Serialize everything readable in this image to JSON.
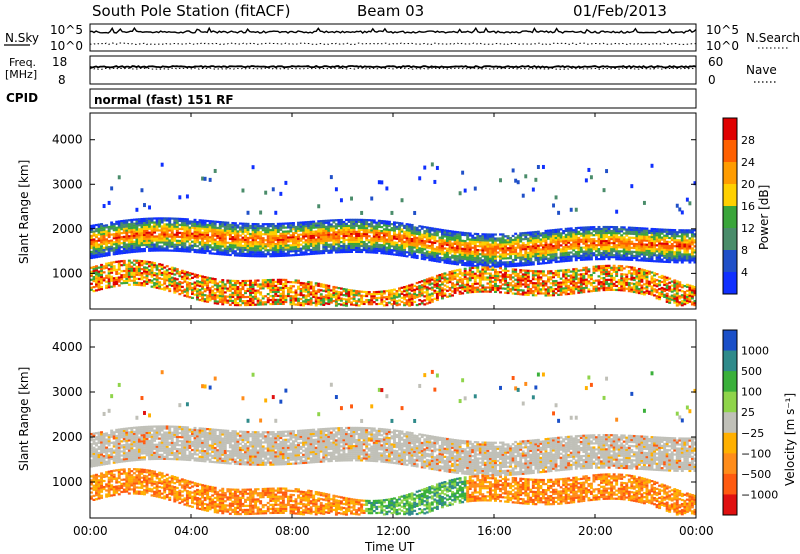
{
  "header": {
    "station": "South Pole Station (fitACF)",
    "beam": "Beam 03",
    "date": "01/Feb/2013"
  },
  "panels": {
    "nsky": {
      "label": "N.Sky",
      "ticks": [
        "10^5",
        "10^0"
      ]
    },
    "nsearch": {
      "label": "N.Search",
      "ticks": [
        "10^5",
        "10^0"
      ]
    },
    "freq": {
      "label_line1": "Freq.",
      "label_line2": "[MHz]",
      "ticks": [
        "18",
        "8"
      ]
    },
    "nave": {
      "label": "Nave",
      "ticks": [
        "60",
        "0"
      ]
    },
    "cpid": {
      "label": "CPID",
      "mode": "normal (fast) 151 RF"
    }
  },
  "chart_data": [
    {
      "type": "heatmap",
      "title": "",
      "xlabel": "Time UT",
      "ylabel": "Slant Range [km]",
      "x_ticks": [
        "00:00",
        "04:00",
        "08:00",
        "12:00",
        "16:00",
        "20:00",
        "00:00"
      ],
      "y_ticks": [
        1000,
        2000,
        3000,
        4000
      ],
      "ylim": [
        200,
        4600
      ],
      "colorbar": {
        "label": "Power [dB]",
        "ticks": [
          "28",
          "24",
          "20",
          "16",
          "12",
          "8",
          "4"
        ],
        "colors": [
          "#e00000",
          "#ff6000",
          "#ff9c00",
          "#ffd000",
          "#3aa53a",
          "#4a8c6a",
          "#2050c8",
          "#1030ff"
        ]
      },
      "bands": [
        {
          "name": "",
          "ranges": [
            [
              1500,
              2100
            ]
          ],
          "value": "mixed"
        }
      ]
    },
    {
      "type": "heatmap",
      "title": "",
      "xlabel": "Time UT",
      "ylabel": "Slant Range [km]",
      "x_ticks": [
        "00:00",
        "04:00",
        "08:00",
        "12:00",
        "16:00",
        "20:00",
        "00:00"
      ],
      "y_ticks": [
        1000,
        2000,
        3000,
        4000
      ],
      "ylim": [
        200,
        4600
      ],
      "colorbar": {
        "label": "Velocity [m s⁻¹]",
        "ticks": [
          "1000",
          "500",
          "100",
          "25",
          "−25",
          "−100",
          "−500",
          "−1000"
        ],
        "colors": [
          "#1a4fc8",
          "#2f8a8a",
          "#3ab03a",
          "#8fd44a",
          "#c0c0b8",
          "#ffb000",
          "#ff8c1a",
          "#ff5a10",
          "#e01010"
        ]
      }
    }
  ]
}
